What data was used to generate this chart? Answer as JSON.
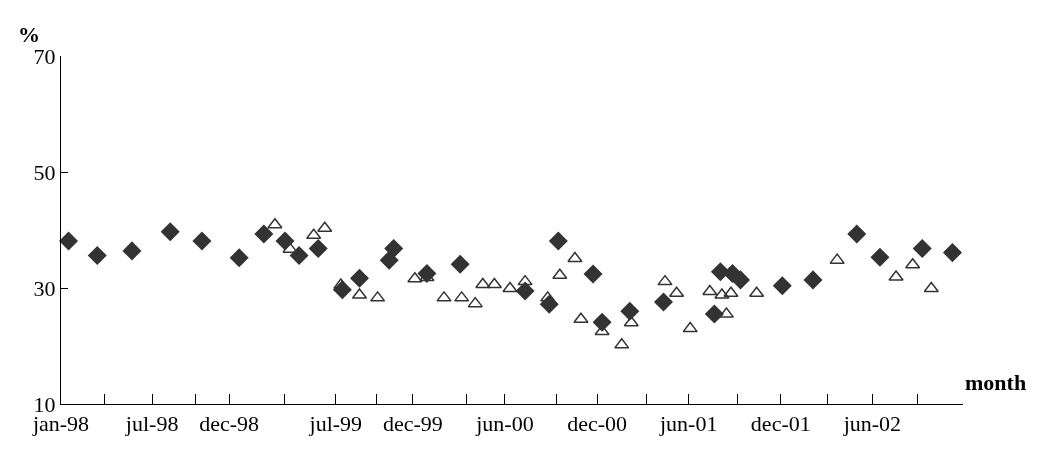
{
  "chart_data": {
    "type": "scatter",
    "ylabel": "%",
    "xlabel": "month",
    "xlim": [
      "1998-01-01",
      "2002-11-28"
    ],
    "ylim": [
      10,
      70
    ],
    "yticks": [
      10,
      30,
      50,
      70
    ],
    "xticks": [
      {
        "value": "1998-01-01",
        "label": "jan-98"
      },
      {
        "value": "1998-03-29",
        "label": null
      },
      {
        "value": "1998-07-01",
        "label": "jul-98"
      },
      {
        "value": "1998-09-26",
        "label": null
      },
      {
        "value": "1998-12-01",
        "label": "dec-98"
      },
      {
        "value": "1999-03-22",
        "label": null
      },
      {
        "value": "1999-07-01",
        "label": "jul-99"
      },
      {
        "value": "1999-09-19",
        "label": null
      },
      {
        "value": "1999-12-01",
        "label": "dec-99"
      },
      {
        "value": "2000-03-16",
        "label": null
      },
      {
        "value": "2000-06-01",
        "label": "jun-00"
      },
      {
        "value": "2000-09-12",
        "label": null
      },
      {
        "value": "2000-12-01",
        "label": "dec-00"
      },
      {
        "value": "2001-03-09",
        "label": null
      },
      {
        "value": "2001-06-01",
        "label": "jun-01"
      },
      {
        "value": "2001-09-06",
        "label": null
      },
      {
        "value": "2001-12-01",
        "label": "dec-01"
      },
      {
        "value": "2002-03-03",
        "label": null
      },
      {
        "value": "2002-06-01",
        "label": "jun-02"
      },
      {
        "value": "2002-08-29",
        "label": null
      }
    ],
    "series": [
      {
        "color": "#333333",
        "marker": "diamond",
        "x": [
          "1998-01-16",
          "1998-03-14",
          "1998-05-22",
          "1998-08-06",
          "1998-10-08",
          "1998-12-21",
          "1999-02-08",
          "1999-03-22",
          "1999-04-19",
          "1999-05-27",
          "1999-07-14",
          "1999-08-17",
          "1999-10-15",
          "1999-10-24",
          "1999-12-29",
          "2000-03-04",
          "2000-07-11",
          "2000-08-28",
          "2000-09-15",
          "2000-11-23",
          "2000-12-11",
          "2001-02-04",
          "2001-04-12",
          "2001-07-22",
          "2001-08-03",
          "2001-08-27",
          "2001-09-12",
          "2001-12-04",
          "2002-02-03",
          "2002-05-01",
          "2002-06-16",
          "2002-09-08",
          "2002-11-07"
        ],
        "values": [
          38.1,
          35.6,
          36.4,
          39.7,
          38.1,
          35.2,
          39.3,
          38.1,
          35.6,
          36.8,
          29.7,
          31.7,
          34.8,
          36.8,
          32.5,
          34.1,
          29.5,
          27.2,
          38.1,
          32.4,
          24.1,
          26.0,
          27.6,
          25.5,
          32.8,
          32.5,
          31.4,
          30.4,
          31.4,
          39.3,
          35.3,
          36.8,
          36.1
        ]
      },
      {
        "color": "#333333",
        "marker": "triangle",
        "x": [
          "1999-03-02",
          "1999-04-01",
          "1999-05-18",
          "1999-06-09",
          "1999-07-11",
          "1999-08-17",
          "1999-09-22",
          "1999-12-05",
          "1999-12-29",
          "2000-02-01",
          "2000-03-07",
          "2000-04-03",
          "2000-04-18",
          "2000-05-11",
          "2000-06-11",
          "2000-07-11",
          "2000-08-25",
          "2000-09-18",
          "2000-10-18",
          "2000-10-30",
          "2000-12-11",
          "2001-01-19",
          "2001-02-07",
          "2001-04-15",
          "2001-05-08",
          "2001-06-04",
          "2001-07-13",
          "2001-08-06",
          "2001-08-15",
          "2001-08-24",
          "2001-10-14",
          "2002-03-23",
          "2002-07-18",
          "2002-08-20",
          "2002-09-26"
        ],
        "values": [
          40.9,
          36.7,
          39.1,
          40.3,
          30.5,
          28.8,
          28.3,
          31.6,
          31.8,
          28.3,
          28.3,
          27.3,
          30.6,
          30.6,
          29.9,
          31.1,
          28.3,
          32.2,
          35.1,
          24.6,
          22.5,
          20.2,
          24.0,
          31.1,
          29.1,
          23.0,
          29.4,
          28.8,
          25.5,
          29.1,
          29.1,
          34.8,
          31.9,
          34.0,
          29.9
        ]
      }
    ]
  }
}
